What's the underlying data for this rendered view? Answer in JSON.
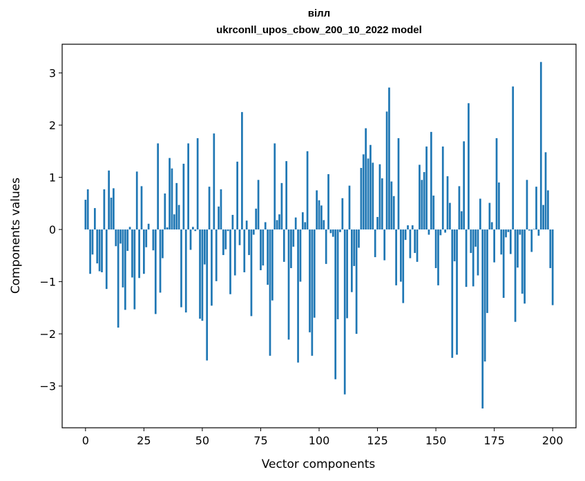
{
  "chart_data": {
    "type": "bar",
    "title_lines": [
      "вілл",
      "ukrconll_upos_cbow_200_10_2022 model"
    ],
    "xlabel": "Vector components",
    "ylabel": "Components values",
    "xlim": [
      -10,
      210
    ],
    "ylim": [
      -3.8,
      3.55
    ],
    "xticks": [
      0,
      25,
      50,
      75,
      100,
      125,
      150,
      175,
      200
    ],
    "yticks": [
      -3,
      -2,
      -1,
      0,
      1,
      2,
      3
    ],
    "ytick_labels": [
      "−3",
      "−2",
      "−1",
      "0",
      "1",
      "2",
      "3"
    ],
    "bar_color": "#1f77b4",
    "grid": false,
    "values": [
      0.57,
      0.77,
      -0.85,
      -0.48,
      0.41,
      -0.65,
      -0.8,
      -0.82,
      0.77,
      -1.14,
      1.13,
      0.61,
      0.79,
      -0.32,
      -1.88,
      -0.27,
      -1.11,
      -1.54,
      -0.41,
      0.05,
      -0.92,
      -1.53,
      1.11,
      -0.93,
      0.83,
      -0.85,
      -0.34,
      0.11,
      0,
      -0.4,
      -1.62,
      1.65,
      -1.21,
      -0.55,
      0.69,
      0.04,
      1.37,
      1.17,
      0.29,
      0.89,
      0.47,
      -1.49,
      1.26,
      -1.59,
      1.65,
      -0.39,
      0.05,
      -0.03,
      1.75,
      -1.71,
      -1.75,
      -0.67,
      -2.51,
      0.82,
      -1.46,
      1.84,
      -0.99,
      0.44,
      0.77,
      -0.49,
      -0.38,
      -0.03,
      -1.24,
      0.28,
      -0.88,
      1.3,
      -0.3,
      2.25,
      -0.82,
      0.17,
      -0.49,
      -1.66,
      -0.1,
      0.4,
      0.95,
      -0.78,
      -0.69,
      0.14,
      -1.06,
      -2.42,
      -1.36,
      1.65,
      0.18,
      0.29,
      0.89,
      -0.62,
      1.31,
      -2.11,
      -0.74,
      -0.33,
      0.23,
      -2.55,
      -1.0,
      0.33,
      0.14,
      1.5,
      -1.97,
      -2.42,
      -1.69,
      0.75,
      0.56,
      0.46,
      0.18,
      -0.66,
      1.06,
      -0.07,
      -0.14,
      -2.87,
      -1.72,
      -0.05,
      0.6,
      -3.16,
      -1.7,
      0.84,
      -1.2,
      -0.7,
      -2.0,
      -0.35,
      1.18,
      1.44,
      1.94,
      1.36,
      1.62,
      1.28,
      -0.53,
      0.24,
      1.25,
      0.98,
      -0.59,
      2.26,
      2.72,
      0.92,
      0.64,
      -1.07,
      1.75,
      -1.0,
      -1.41,
      -0.2,
      0.08,
      -0.55,
      0.08,
      -0.45,
      -0.62,
      1.24,
      0.95,
      1.1,
      1.59,
      -0.1,
      1.87,
      0.65,
      -0.74,
      -1.07,
      -0.11,
      1.59,
      -0.06,
      1.02,
      0.51,
      -2.46,
      -0.61,
      -2.4,
      0.83,
      0.35,
      1.69,
      -1.1,
      2.42,
      -0.45,
      -1.09,
      -0.33,
      -0.88,
      0.59,
      -3.43,
      -2.53,
      -1.6,
      0.51,
      0.14,
      -0.63,
      1.75,
      0.9,
      -0.48,
      -1.31,
      -0.15,
      -0.05,
      -0.47,
      2.74,
      -1.77,
      -0.73,
      -0.1,
      -1.23,
      -1.42,
      0.95,
      -0.02,
      -0.43,
      0.01,
      0.82,
      -0.12,
      3.21,
      0.47,
      1.48,
      0.75,
      -0.74,
      -1.45
    ]
  }
}
